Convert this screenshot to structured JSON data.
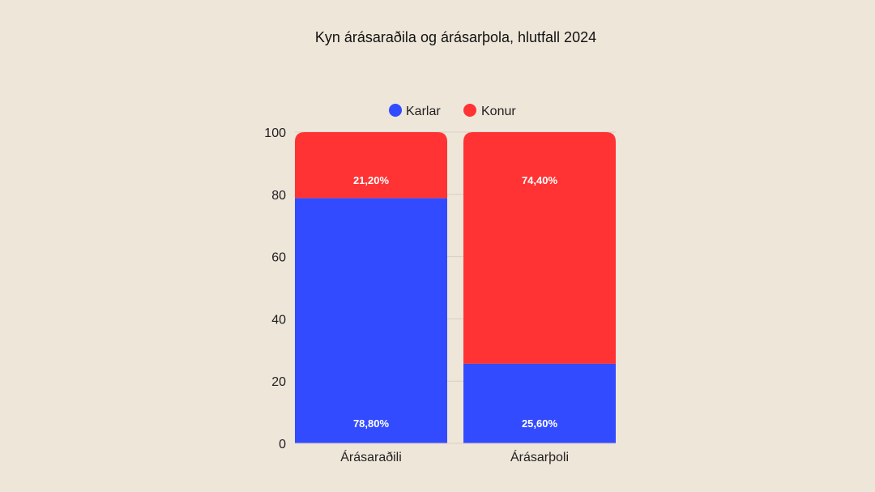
{
  "chart_data": {
    "type": "bar",
    "stacked": true,
    "title": "Kyn árásaraðila og árásarþola, hlutfall 2024",
    "categories": [
      "Árásaraðili",
      "Árásarþoli"
    ],
    "series": [
      {
        "name": "Karlar",
        "values": [
          78.8,
          25.6
        ],
        "labels": [
          "78,80%",
          "25,60%"
        ],
        "color": "#334bff"
      },
      {
        "name": "Konur",
        "values": [
          21.2,
          74.4
        ],
        "labels": [
          "21,20%",
          "74,40%"
        ],
        "color": "#ff3333"
      }
    ],
    "yticks": [
      0,
      20,
      40,
      60,
      80,
      100
    ],
    "ylim": [
      0,
      100
    ],
    "grid": true,
    "legend_position": "top"
  }
}
